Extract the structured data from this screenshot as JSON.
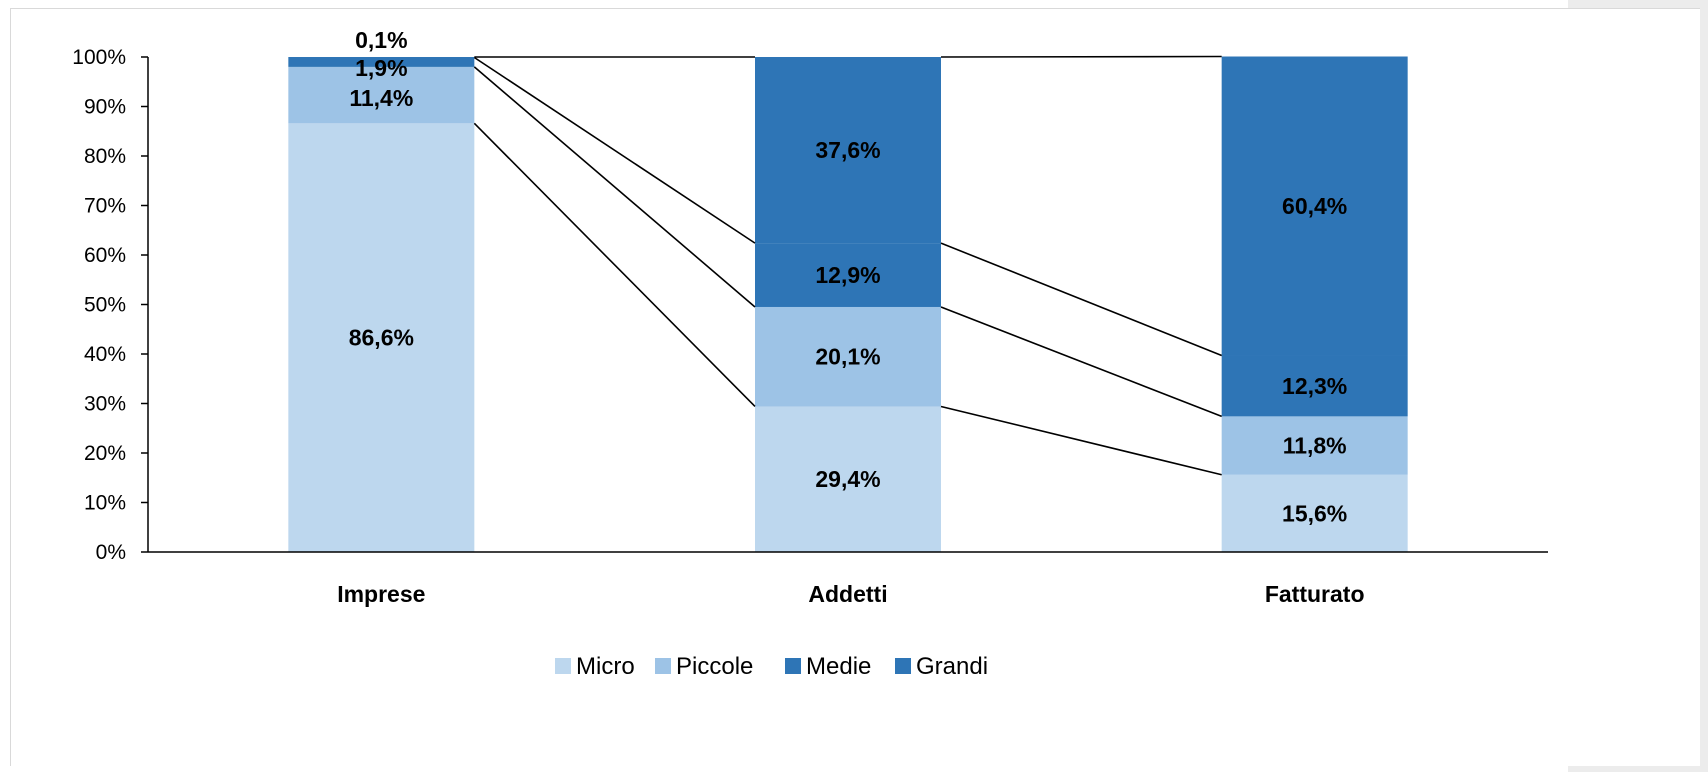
{
  "chart_data": {
    "type": "bar",
    "stacked": true,
    "categories": [
      "Imprese",
      "Addetti",
      "Fatturato"
    ],
    "series": [
      {
        "name": "Micro",
        "values": [
          86.6,
          29.4,
          15.6
        ],
        "labels": [
          "86,6%",
          "29,4%",
          "15,6%"
        ],
        "color": "#bdd7ee"
      },
      {
        "name": "Piccole",
        "values": [
          11.4,
          20.1,
          11.8
        ],
        "labels": [
          "11,4%",
          "20,1%",
          "11,8%"
        ],
        "color": "#9dc3e6"
      },
      {
        "name": "Medie",
        "values": [
          1.9,
          12.9,
          12.3
        ],
        "labels": [
          "1,9%",
          "12,9%",
          "12,3%"
        ],
        "color": "#2e75b6"
      },
      {
        "name": "Grandi",
        "values": [
          0.1,
          37.6,
          60.4
        ],
        "labels": [
          "0,1%",
          "37,6%",
          "60,4%"
        ],
        "color": "#2e75b6"
      }
    ],
    "yticks": [
      "0%",
      "10%",
      "20%",
      "30%",
      "40%",
      "50%",
      "60%",
      "70%",
      "80%",
      "90%",
      "100%"
    ],
    "ylim": [
      0,
      100
    ],
    "connector_lines": true,
    "legend_position": "bottom",
    "grid": false
  }
}
